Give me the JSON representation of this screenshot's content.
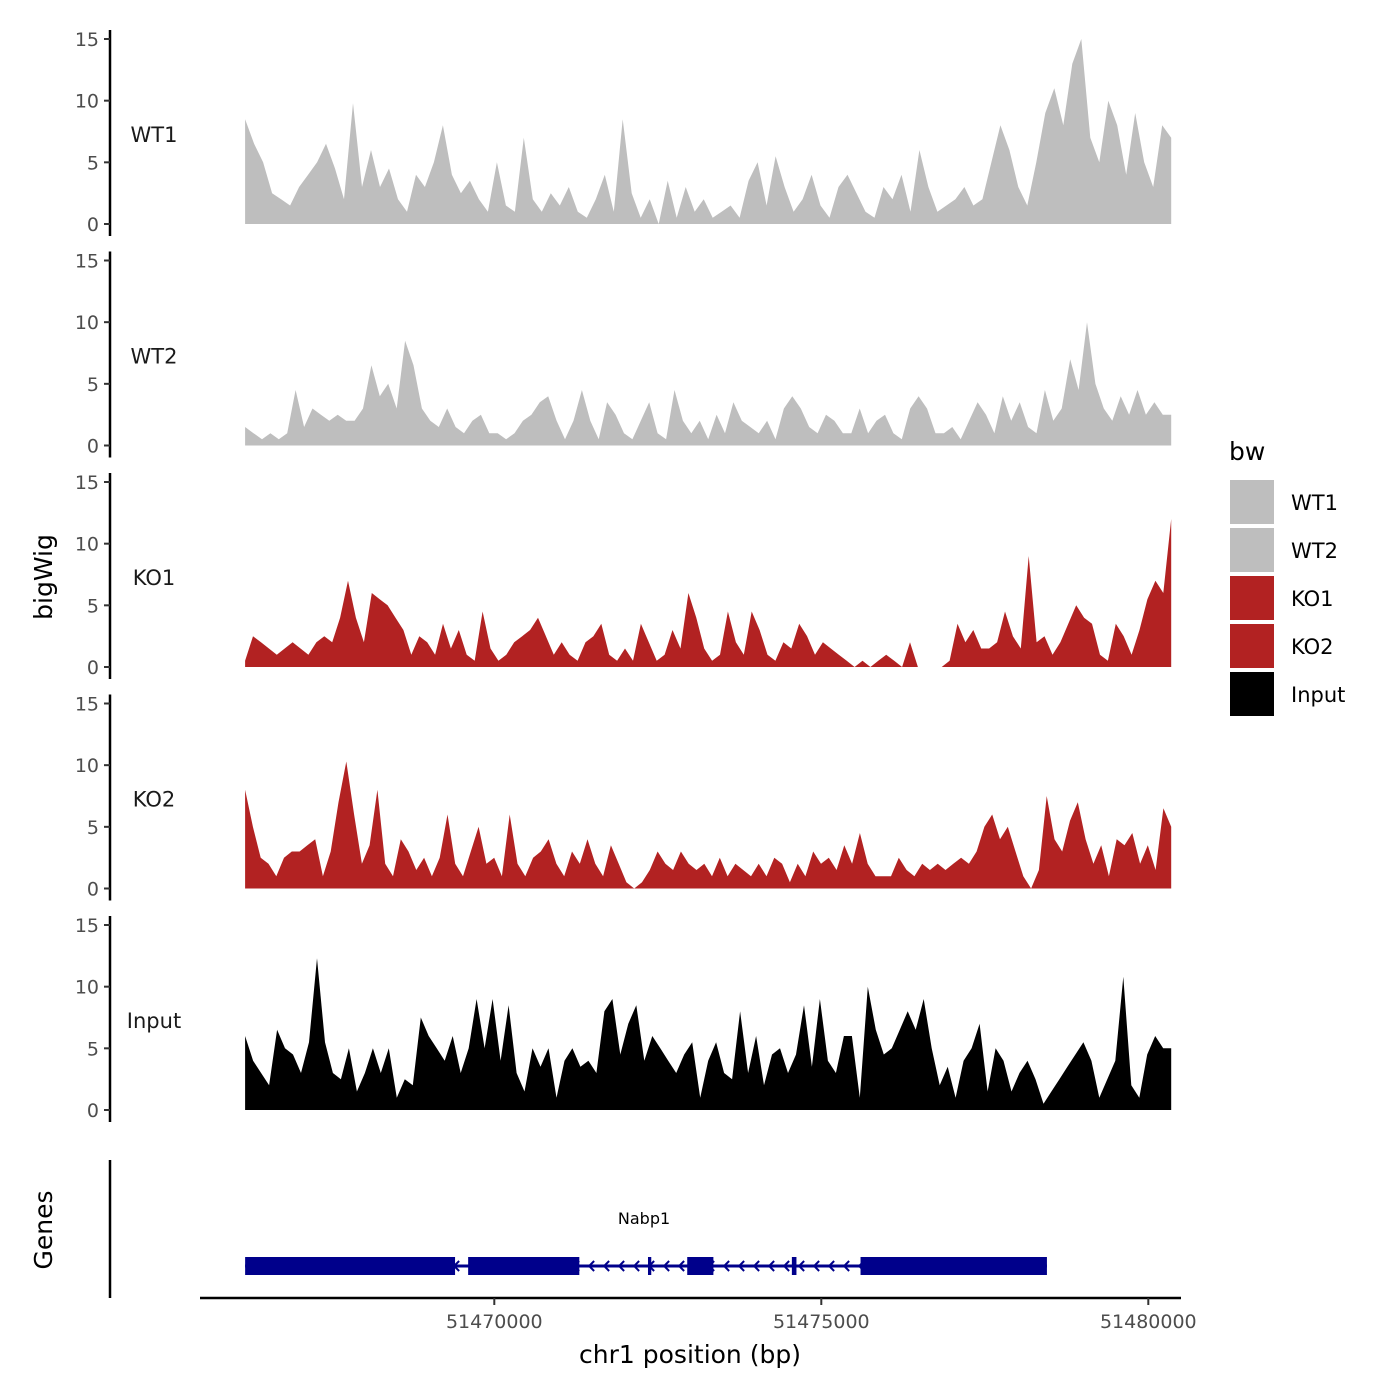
{
  "chart_data": {
    "type": "area",
    "chromosome": "chr1",
    "xlabel": "chr1 position (bp)",
    "ylabel": "bigWig",
    "genes_panel_label": "Genes",
    "xlim": [
      51465500,
      51480500
    ],
    "x_ticks": [
      51470000,
      51475000,
      51480000
    ],
    "x_tick_labels": [
      "51470000",
      "51475000",
      "51480000"
    ],
    "ylim": [
      0,
      15
    ],
    "y_ticks": [
      0,
      5,
      10,
      15
    ],
    "y_tick_labels": [
      "0",
      "5",
      "10",
      "15"
    ],
    "data_start": 51466190,
    "data_end": 51480350,
    "legend": {
      "title": "bw",
      "entries": [
        {
          "label": "WT1",
          "color": "#bebebe"
        },
        {
          "label": "WT2",
          "color": "#bebebe"
        },
        {
          "label": "KO1",
          "color": "#b22222"
        },
        {
          "label": "KO2",
          "color": "#b22222"
        },
        {
          "label": "Input",
          "color": "#000000"
        }
      ]
    },
    "series": [
      {
        "name": "WT1",
        "color": "#bebebe",
        "values": [
          8.5,
          6.5,
          5,
          2.5,
          2,
          1.5,
          3,
          4,
          5,
          6.5,
          4.5,
          2,
          9.8,
          3,
          6,
          3,
          4.5,
          2,
          1,
          4,
          3,
          5,
          8,
          4,
          2.5,
          3.5,
          2,
          1,
          5,
          1.5,
          1,
          7,
          2,
          1,
          2.5,
          1.5,
          3,
          1,
          0.5,
          2,
          4,
          1,
          8.5,
          2.5,
          0.5,
          2,
          0,
          3.5,
          0.5,
          3,
          1,
          2,
          0.5,
          1,
          1.5,
          0.5,
          3.5,
          5,
          1.5,
          5.5,
          3,
          1,
          2,
          4,
          1.5,
          0.5,
          3,
          4,
          2.5,
          1,
          0.5,
          3,
          2,
          4,
          1,
          6,
          3,
          1,
          1.5,
          2,
          3,
          1.5,
          2,
          5,
          8,
          6,
          3,
          1.5,
          5,
          9,
          11,
          8,
          13,
          15,
          7,
          5,
          10,
          8,
          4,
          9,
          5,
          3,
          8,
          7
        ]
      },
      {
        "name": "WT2",
        "color": "#bebebe",
        "values": [
          1.5,
          1,
          0.5,
          1,
          0.5,
          1,
          4.5,
          1.5,
          3,
          2.5,
          2,
          2.5,
          2,
          2,
          3,
          6.5,
          4,
          5,
          3,
          8.5,
          6.5,
          3,
          2,
          1.5,
          3,
          1.5,
          1,
          2,
          2.5,
          1,
          1,
          0.5,
          1,
          2,
          2.5,
          3.5,
          4,
          2,
          0.5,
          2,
          4.5,
          2,
          0.5,
          3.5,
          2.5,
          1,
          0.5,
          2,
          3.5,
          1,
          0.5,
          4.5,
          2,
          1,
          2,
          0.5,
          2.5,
          1,
          3.5,
          2,
          1.5,
          1,
          2,
          0.5,
          3,
          4,
          3,
          1.5,
          1,
          2.5,
          2,
          1,
          1,
          3,
          1,
          2,
          2.5,
          1,
          0.5,
          3,
          4,
          3,
          1,
          1,
          1.5,
          0.5,
          2,
          3.5,
          2.5,
          1,
          4,
          2,
          3.5,
          1.5,
          1,
          4.5,
          2,
          3,
          7,
          4.5,
          10,
          5,
          3,
          2,
          4,
          2.5,
          4.5,
          2.5,
          3.5,
          2.5,
          2.5
        ]
      },
      {
        "name": "KO1",
        "color": "#b22222",
        "values": [
          0.5,
          2.5,
          2,
          1.5,
          1,
          1.5,
          2,
          1.5,
          1,
          2,
          2.5,
          2,
          4,
          7,
          4,
          2,
          6,
          5.5,
          5,
          4,
          3,
          1,
          2.5,
          2,
          1,
          3.5,
          1.5,
          3,
          1,
          0.5,
          4.5,
          1.5,
          0.5,
          1,
          2,
          2.5,
          3,
          4,
          2.5,
          1,
          2,
          1,
          0.5,
          2,
          2.5,
          3.5,
          1,
          0.5,
          1.5,
          0.5,
          3.5,
          2,
          0.5,
          1,
          3,
          1.5,
          6,
          4,
          1.5,
          0.5,
          1,
          4.5,
          2,
          1,
          4.5,
          3,
          1,
          0.5,
          2,
          1.5,
          3.5,
          2.5,
          1,
          2,
          1.5,
          1,
          0.5,
          0,
          0.5,
          0,
          0.5,
          1,
          0.5,
          0,
          2,
          0,
          0,
          0,
          0,
          0.5,
          3.5,
          2,
          3,
          1.5,
          1.5,
          2,
          4.5,
          2.5,
          1.5,
          9,
          2,
          2.5,
          1,
          2,
          3.5,
          5,
          4,
          3.5,
          1,
          0.5,
          3.5,
          2.5,
          1,
          3,
          5.5,
          7,
          6,
          12
        ]
      },
      {
        "name": "KO2",
        "color": "#b22222",
        "values": [
          8,
          5,
          2.5,
          2,
          1,
          2.5,
          3,
          3,
          3.5,
          4,
          1,
          3,
          7,
          10.3,
          6,
          2,
          3.5,
          8,
          2,
          1,
          4,
          3,
          1.5,
          2.5,
          1,
          2.5,
          6,
          2,
          1,
          3,
          5,
          2,
          2.5,
          1,
          6,
          2,
          1,
          2.5,
          3,
          4,
          2,
          1,
          3,
          2,
          4,
          2,
          1,
          3.5,
          2,
          0.5,
          0,
          0.5,
          1.5,
          3,
          2,
          1.5,
          3,
          2,
          1.5,
          2,
          1,
          2.5,
          1,
          2,
          1.5,
          1,
          2,
          1,
          2.5,
          2,
          0.5,
          2,
          1,
          3,
          2,
          2.5,
          1.5,
          3.5,
          2,
          4.5,
          2,
          1,
          1,
          1,
          2.5,
          1.5,
          1,
          2,
          1.5,
          2,
          1.5,
          2,
          2.5,
          2,
          3,
          5,
          6,
          4,
          5,
          3,
          1,
          0,
          1.5,
          7.5,
          4,
          3,
          5.5,
          7,
          4,
          2,
          3.5,
          1,
          4,
          3.5,
          4.5,
          2,
          3.5,
          1.5,
          6.5,
          5
        ]
      },
      {
        "name": "Input",
        "color": "#000000",
        "values": [
          6,
          4,
          3,
          2,
          6.5,
          5,
          4.5,
          3,
          5.5,
          12.3,
          5.5,
          3,
          2.5,
          5,
          1.5,
          3,
          5,
          3,
          5,
          1,
          2.5,
          2,
          7.5,
          6,
          5,
          4,
          6,
          3,
          5,
          9,
          5,
          9,
          4,
          8.5,
          3,
          1.5,
          5,
          3.5,
          5,
          1,
          4,
          5,
          3.5,
          4,
          3,
          8,
          9,
          4.5,
          7,
          8.5,
          4,
          6,
          5,
          4,
          3,
          4.5,
          5.5,
          1,
          4,
          5.5,
          3,
          2.5,
          8,
          3,
          6,
          2,
          4.5,
          5,
          3,
          4.5,
          8.5,
          3.5,
          9,
          4,
          3,
          6,
          6,
          1,
          10,
          6.5,
          4.5,
          5,
          6.5,
          8,
          6.5,
          9,
          5,
          2,
          3.5,
          1,
          4,
          5,
          7,
          1.5,
          5,
          4,
          1.5,
          3,
          4,
          2.5,
          0.5,
          1.5,
          2.5,
          3.5,
          4.5,
          5.5,
          4,
          1,
          2.5,
          4,
          10.8,
          2,
          1,
          4.5,
          6,
          5,
          5
        ]
      }
    ],
    "genes": [
      {
        "name": "Nabp1",
        "strand": "-",
        "color": "#00008b",
        "start": 51466190,
        "end": 51478450,
        "exons": [
          {
            "start": 51466190,
            "end": 51469400
          },
          {
            "start": 51469600,
            "end": 51471300
          },
          {
            "start": 51472350,
            "end": 51472400
          },
          {
            "start": 51472950,
            "end": 51473350
          },
          {
            "start": 51474550,
            "end": 51474620
          },
          {
            "start": 51475600,
            "end": 51478450
          }
        ]
      }
    ]
  }
}
